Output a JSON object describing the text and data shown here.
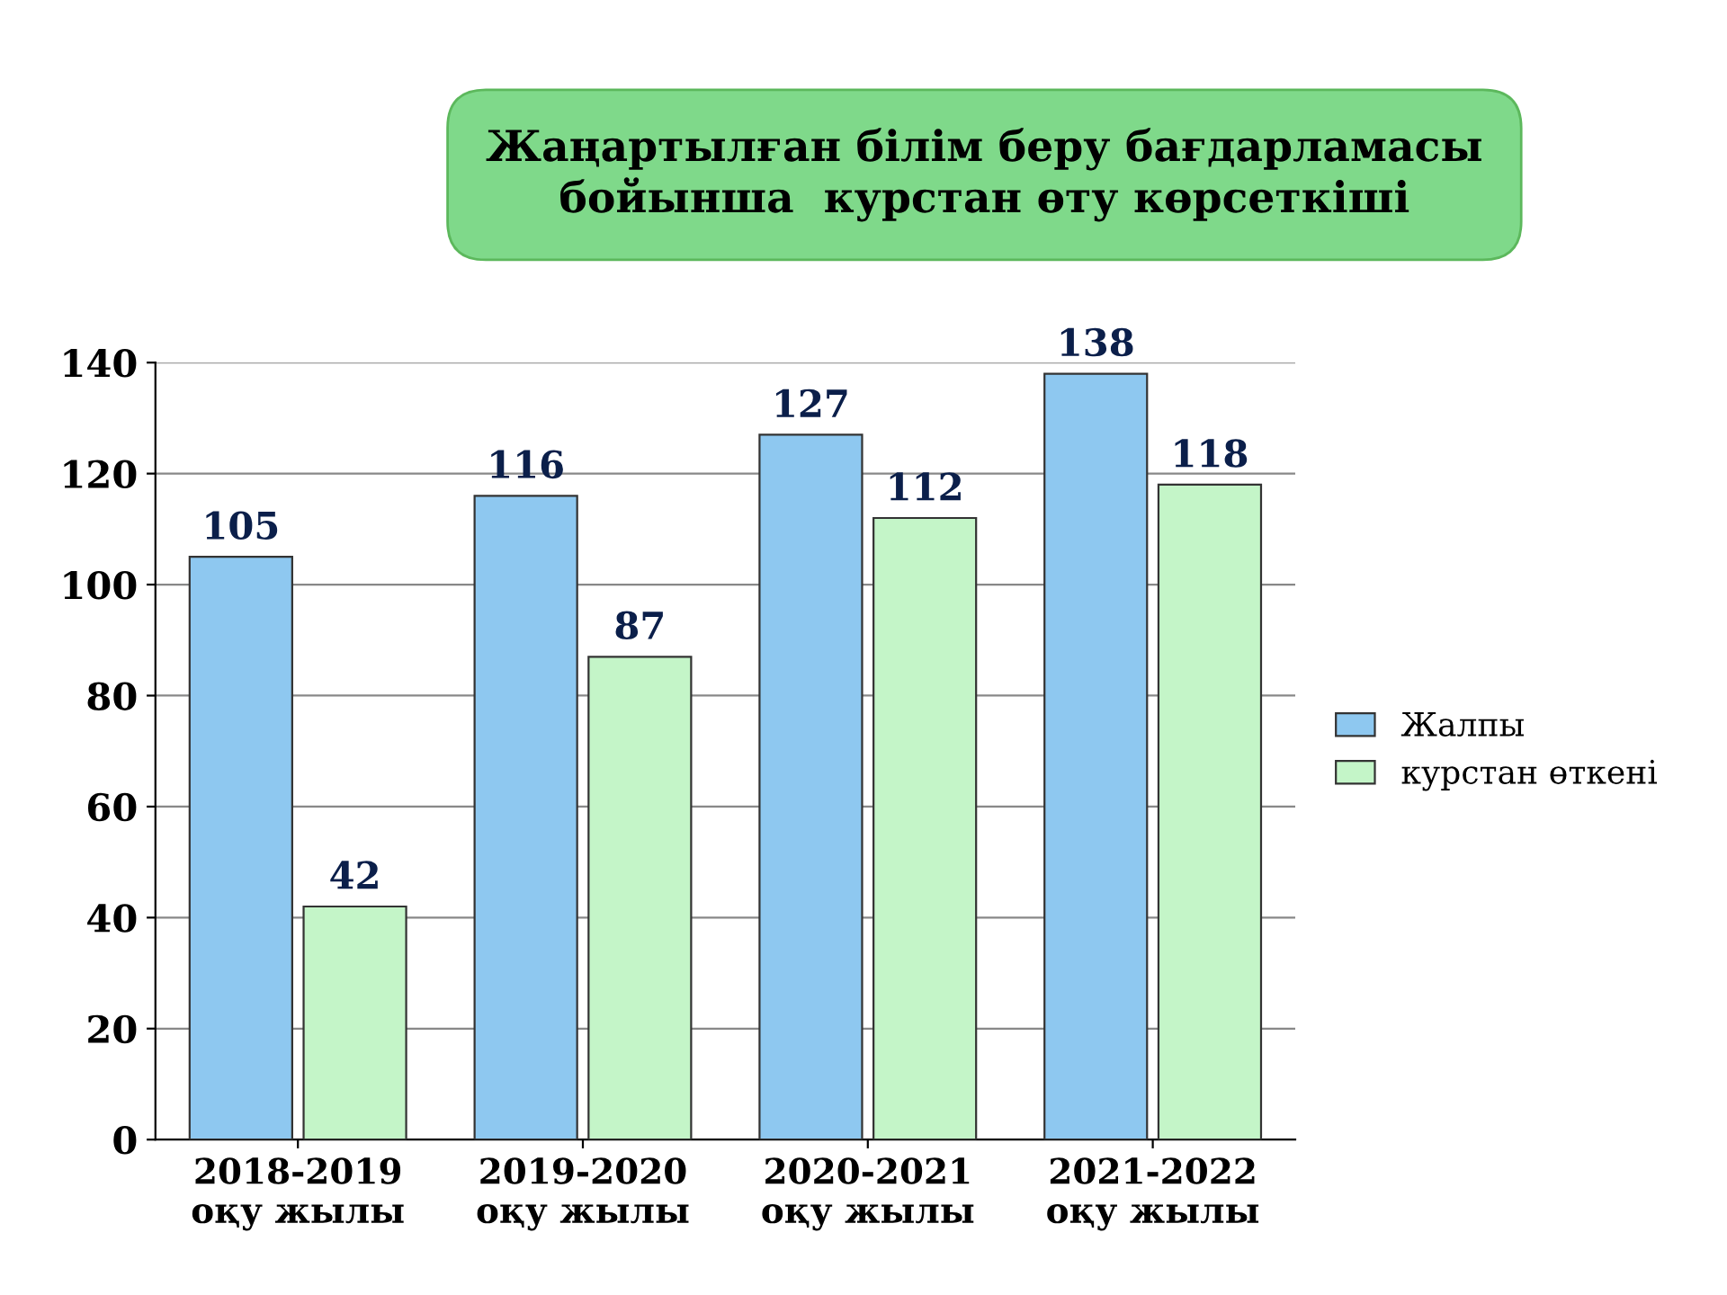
{
  "chart_data": {
    "type": "bar",
    "title": "Жаңартылған білім беру бағдарламасы\nбойынша  курстан өту көрсеткіші",
    "categories": [
      "2018-2019\nоқу жылы",
      "2019-2020\nоқу жылы",
      "2020-2021\nоқу жылы",
      "2021-2022\nоқу жылы"
    ],
    "series": [
      {
        "name": "Жалпы",
        "color": "#8ec8f0",
        "values": [
          105,
          116,
          127,
          138
        ]
      },
      {
        "name": "курстан өткені",
        "color": "#c4f5c8",
        "values": [
          42,
          87,
          112,
          118
        ]
      }
    ],
    "ylim": [
      0,
      140
    ],
    "yticks": [
      0,
      20,
      40,
      60,
      80,
      100,
      120,
      140
    ],
    "grid": "y",
    "legend": "right",
    "data_labels": true
  }
}
